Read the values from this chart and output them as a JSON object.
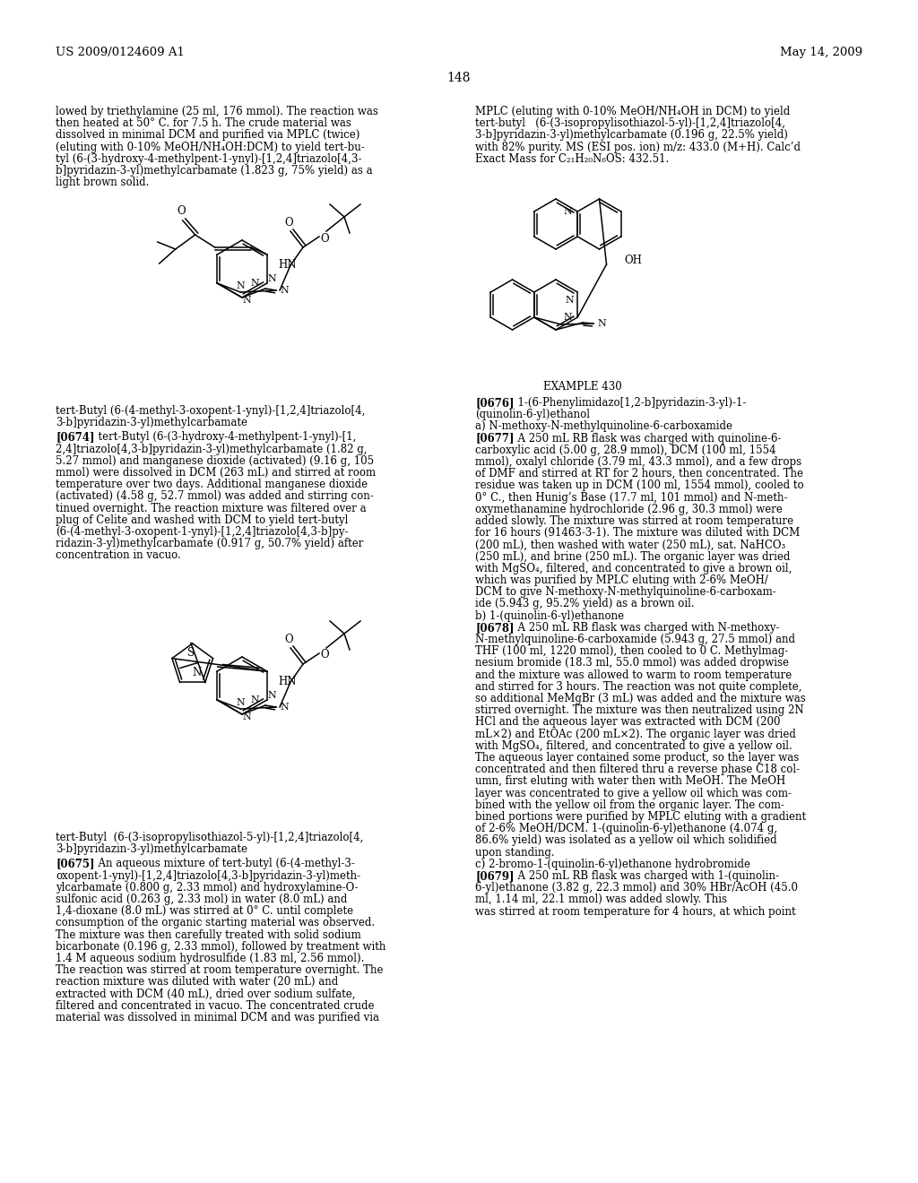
{
  "page_number": "148",
  "patent_number": "US 2009/0124609 A1",
  "patent_date": "May 14, 2009",
  "background_color": "#ffffff",
  "text_color": "#000000",
  "font_size_body": 8.5,
  "font_size_header": 9.5,
  "font_size_page_num": 10
}
